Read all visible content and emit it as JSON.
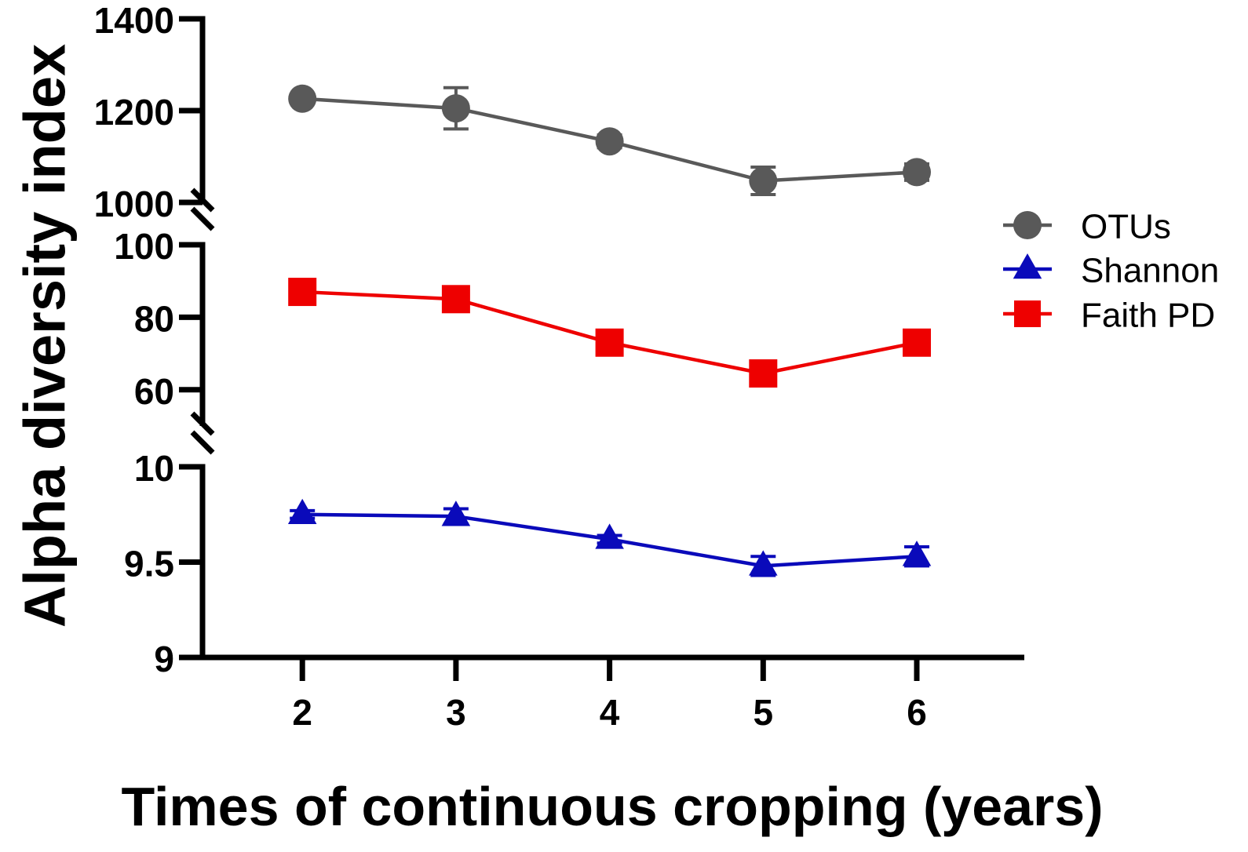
{
  "chart_data": {
    "type": "line",
    "xlabel": "Times of continuous cropping (years)",
    "ylabel": "Alpha diversity index",
    "categories": [
      "2",
      "3",
      "4",
      "5",
      "6"
    ],
    "x": [
      2,
      3,
      4,
      5,
      6
    ],
    "xlim": [
      1.35,
      6.7
    ],
    "segments": [
      {
        "name": "otus-segment",
        "ylim": [
          1000,
          1400
        ],
        "ticks": [
          1000,
          1200,
          1400
        ],
        "tick_labels": [
          "1000",
          "1200",
          "1400"
        ]
      },
      {
        "name": "faith-segment",
        "ylim": [
          50,
          100
        ],
        "ticks": [
          60,
          80,
          100
        ],
        "tick_labels": [
          "60",
          "80",
          "100"
        ]
      },
      {
        "name": "shannon-segment",
        "ylim": [
          9,
          10
        ],
        "ticks": [
          9,
          9.5,
          10
        ],
        "tick_labels": [
          "9",
          "9.5",
          "10"
        ]
      }
    ],
    "series": [
      {
        "name": "OTUs",
        "segment": 0,
        "marker": "circle",
        "color": "#595959",
        "values": [
          1226,
          1205,
          1133,
          1047,
          1066
        ],
        "errors": [
          8,
          45,
          14,
          30,
          18
        ]
      },
      {
        "name": "Shannon",
        "segment": 2,
        "marker": "triangle",
        "color": "#0a0aba",
        "values": [
          9.75,
          9.74,
          9.62,
          9.48,
          9.53
        ],
        "errors": [
          0.02,
          0.04,
          0.02,
          0.05,
          0.05
        ]
      },
      {
        "name": "Faith PD",
        "segment": 1,
        "marker": "square",
        "color": "#ee0000",
        "values": [
          87,
          85,
          73,
          64.5,
          73
        ],
        "errors": [
          0.8,
          1.0,
          0.8,
          1.0,
          0.8
        ]
      }
    ],
    "legend": {
      "position": "right",
      "order": [
        "OTUs",
        "Shannon",
        "Faith PD"
      ]
    }
  }
}
